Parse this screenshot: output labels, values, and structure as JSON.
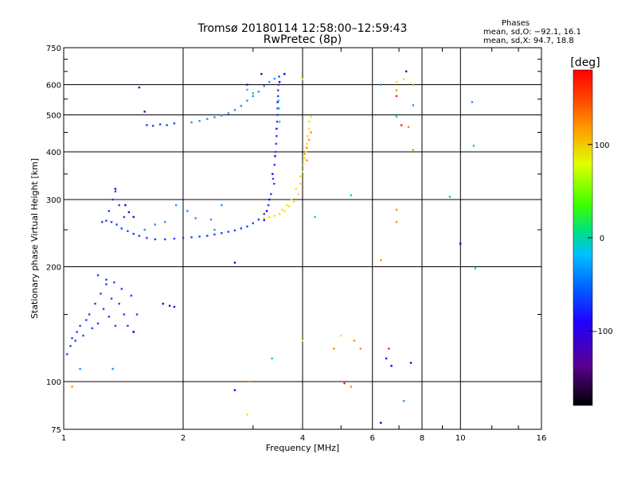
{
  "chart_data": {
    "type": "scatter",
    "title": "Tromsø 20180114 12:58:00–12:59:43",
    "subtitle": "RwPretec (8p)",
    "xlabel": "Frequency [MHz]",
    "ylabel": "Stationary phase Virtual Height [km]",
    "x_scale": "log",
    "y_scale": "log",
    "xlim": [
      1,
      16
    ],
    "ylim": [
      75,
      750
    ],
    "x_ticks": [
      1,
      2,
      4,
      6,
      8,
      10,
      16
    ],
    "x_tick_labels": [
      "1",
      "2",
      "4",
      "6",
      "8",
      "10",
      "16"
    ],
    "y_ticks": [
      75,
      100,
      200,
      300,
      400,
      500,
      600,
      750
    ],
    "y_tick_labels": [
      "75",
      "100",
      "200",
      "300",
      "400",
      "500",
      "600",
      "750"
    ],
    "grid": true,
    "stats": {
      "title": "Phases",
      "o_line": "mean, sd,O: −92.1, 16.1",
      "x_line": "mean, sd,X:  94.7, 18.8"
    },
    "colorbar": {
      "label": "[deg]",
      "range": [
        -180,
        180
      ],
      "ticks": [
        100,
        0,
        -100
      ],
      "tick_labels": [
        "100",
        "0",
        "−100"
      ]
    },
    "series": [
      {
        "phase": -95,
        "color": "#2040ff",
        "points": [
          [
            1.02,
            118
          ],
          [
            1.04,
            124
          ],
          [
            1.05,
            130
          ],
          [
            1.07,
            128
          ],
          [
            1.08,
            135
          ],
          [
            1.1,
            140
          ],
          [
            1.12,
            132
          ],
          [
            1.14,
            145
          ],
          [
            1.16,
            150
          ],
          [
            1.18,
            138
          ],
          [
            1.2,
            160
          ],
          [
            1.22,
            142
          ],
          [
            1.24,
            170
          ],
          [
            1.26,
            155
          ],
          [
            1.28,
            180
          ],
          [
            1.3,
            148
          ],
          [
            1.32,
            165
          ],
          [
            1.35,
            140
          ],
          [
            1.38,
            160
          ],
          [
            1.4,
            175
          ],
          [
            1.42,
            150
          ],
          [
            1.45,
            140
          ],
          [
            1.48,
            168
          ],
          [
            1.5,
            135
          ],
          [
            1.53,
            150
          ],
          [
            1.22,
            190
          ],
          [
            1.28,
            185
          ],
          [
            1.34,
            182
          ],
          [
            1.25,
            262
          ],
          [
            1.28,
            264
          ],
          [
            1.32,
            262
          ],
          [
            1.36,
            258
          ],
          [
            1.4,
            252
          ],
          [
            1.45,
            248
          ],
          [
            1.5,
            244
          ],
          [
            1.55,
            241
          ],
          [
            1.62,
            238
          ],
          [
            1.7,
            236
          ],
          [
            1.8,
            236
          ],
          [
            1.9,
            237
          ],
          [
            2.0,
            238
          ],
          [
            2.1,
            239
          ],
          [
            2.2,
            240
          ],
          [
            2.3,
            241
          ],
          [
            2.4,
            243
          ],
          [
            2.5,
            245
          ],
          [
            2.6,
            247
          ],
          [
            2.7,
            249
          ],
          [
            2.8,
            252
          ],
          [
            2.9,
            255
          ],
          [
            3.0,
            260
          ],
          [
            3.1,
            266
          ],
          [
            3.2,
            275
          ],
          [
            3.28,
            290
          ],
          [
            3.33,
            310
          ],
          [
            3.37,
            340
          ],
          [
            3.4,
            370
          ],
          [
            3.42,
            400
          ],
          [
            3.44,
            440
          ],
          [
            3.45,
            480
          ],
          [
            3.46,
            520
          ],
          [
            3.47,
            560
          ],
          [
            3.48,
            600
          ],
          [
            3.49,
            630
          ],
          [
            3.39,
            330
          ],
          [
            3.43,
            420
          ],
          [
            3.46,
            500
          ],
          [
            3.47,
            580
          ],
          [
            1.33,
            300
          ],
          [
            1.35,
            315
          ],
          [
            1.38,
            290
          ],
          [
            1.3,
            280
          ],
          [
            1.42,
            270
          ],
          [
            1.62,
            470
          ],
          [
            1.68,
            468
          ],
          [
            1.75,
            472
          ],
          [
            1.82,
            470
          ],
          [
            1.9,
            475
          ]
        ]
      },
      {
        "phase": -115,
        "color": "#3000d0",
        "points": [
          [
            1.43,
            290
          ],
          [
            1.46,
            278
          ],
          [
            1.5,
            270
          ],
          [
            1.35,
            320
          ],
          [
            3.2,
            265
          ],
          [
            3.25,
            280
          ],
          [
            3.3,
            300
          ],
          [
            3.36,
            350
          ],
          [
            3.41,
            390
          ],
          [
            3.44,
            460
          ],
          [
            3.46,
            540
          ],
          [
            3.5,
            610
          ],
          [
            3.15,
            640
          ],
          [
            2.9,
            600
          ],
          [
            1.78,
            160
          ],
          [
            1.85,
            158
          ],
          [
            1.9,
            157
          ],
          [
            1.55,
            590
          ],
          [
            1.6,
            510
          ],
          [
            7.5,
            112
          ],
          [
            7.3,
            650
          ]
        ]
      },
      {
        "phase": -75,
        "color": "#2090ff",
        "points": [
          [
            2.1,
            478
          ],
          [
            2.2,
            482
          ],
          [
            2.3,
            488
          ],
          [
            2.4,
            493
          ],
          [
            2.5,
            498
          ],
          [
            2.6,
            505
          ],
          [
            2.7,
            515
          ],
          [
            2.8,
            528
          ],
          [
            2.9,
            545
          ],
          [
            3.0,
            560
          ],
          [
            3.1,
            575
          ],
          [
            3.2,
            595
          ],
          [
            3.3,
            610
          ],
          [
            3.4,
            622
          ],
          [
            1.92,
            290
          ],
          [
            2.05,
            280
          ],
          [
            2.5,
            290
          ],
          [
            1.7,
            258
          ],
          [
            1.8,
            262
          ],
          [
            2.15,
            268
          ],
          [
            2.35,
            266
          ],
          [
            1.6,
            250
          ],
          [
            2.4,
            250
          ],
          [
            1.1,
            108
          ],
          [
            1.33,
            108
          ],
          [
            7.2,
            89
          ],
          [
            10.7,
            540
          ],
          [
            6.3,
            600
          ],
          [
            7.6,
            530
          ]
        ]
      },
      {
        "phase": -50,
        "color": "#00c8e0",
        "points": [
          [
            3.48,
            545
          ],
          [
            3.49,
            520
          ],
          [
            3.5,
            480
          ],
          [
            2.9,
            582
          ],
          [
            3.0,
            570
          ],
          [
            6.9,
            495
          ],
          [
            9.4,
            305
          ],
          [
            10.8,
            415
          ],
          [
            5.3,
            308
          ]
        ]
      },
      {
        "phase": 110,
        "color": "#ffe000",
        "points": [
          [
            3.2,
            268
          ],
          [
            3.3,
            270
          ],
          [
            3.4,
            272
          ],
          [
            3.5,
            275
          ],
          [
            3.6,
            280
          ],
          [
            3.7,
            288
          ],
          [
            3.8,
            296
          ],
          [
            3.9,
            310
          ],
          [
            3.95,
            330
          ],
          [
            4.0,
            355
          ],
          [
            4.05,
            385
          ],
          [
            4.1,
            420
          ],
          [
            4.15,
            460
          ],
          [
            4.2,
            495
          ],
          [
            3.55,
            282
          ],
          [
            3.65,
            290
          ],
          [
            3.75,
            300
          ],
          [
            3.85,
            320
          ],
          [
            3.95,
            345
          ],
          [
            4.02,
            370
          ],
          [
            4.08,
            400
          ],
          [
            4.12,
            440
          ],
          [
            4.16,
            480
          ],
          [
            4.0,
            620
          ],
          [
            6.9,
            610
          ],
          [
            7.2,
            620
          ],
          [
            4.0,
            128
          ],
          [
            5.0,
            132
          ],
          [
            2.9,
            82
          ]
        ]
      },
      {
        "phase": 140,
        "color": "#ff9000",
        "points": [
          [
            4.05,
            395
          ],
          [
            4.1,
            410
          ],
          [
            4.15,
            430
          ],
          [
            4.2,
            450
          ],
          [
            4.1,
            380
          ],
          [
            7.4,
            465
          ],
          [
            7.6,
            405
          ],
          [
            6.9,
            580
          ],
          [
            7.6,
            600
          ],
          [
            4.8,
            122
          ],
          [
            5.4,
            128
          ],
          [
            5.6,
            122
          ],
          [
            5.3,
            97
          ],
          [
            6.9,
            282
          ],
          [
            6.3,
            208
          ],
          [
            1.05,
            97
          ],
          [
            2.95,
            100
          ],
          [
            6.9,
            262
          ]
        ]
      },
      {
        "phase": 170,
        "color": "#ff2000",
        "points": [
          [
            6.9,
            560
          ],
          [
            7.1,
            470
          ],
          [
            5.1,
            99
          ],
          [
            6.6,
            122
          ]
        ]
      },
      {
        "phase": 20,
        "color": "#00e060",
        "points": [
          [
            4.3,
            270
          ],
          [
            3.35,
            115
          ],
          [
            10.9,
            198
          ]
        ]
      },
      {
        "phase": -100,
        "color": "#0000ff",
        "points": [
          [
            2.7,
            205
          ],
          [
            6.3,
            78
          ],
          [
            6.5,
            115
          ],
          [
            1.5,
            135
          ],
          [
            6.7,
            110
          ],
          [
            10.0,
            230
          ],
          [
            3.6,
            640
          ],
          [
            2.7,
            95
          ]
        ]
      }
    ]
  }
}
